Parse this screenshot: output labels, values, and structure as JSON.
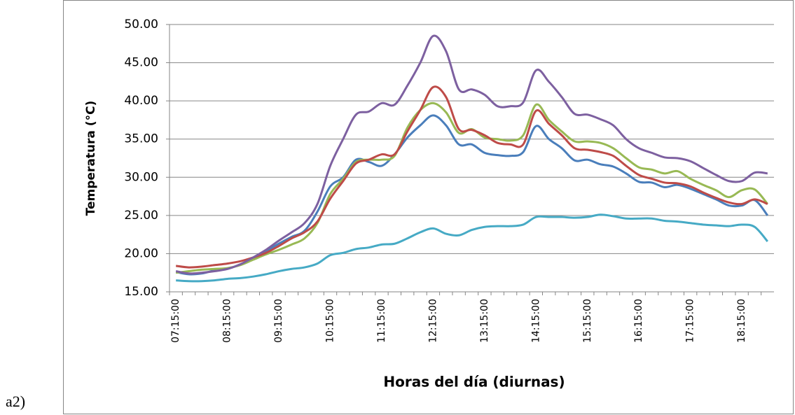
{
  "label": "a2)",
  "chart_data": {
    "type": "line",
    "y_title": "Temperatura (°C)",
    "x_title": "Horas del día (diurnas)",
    "categories": [
      "07:15:00",
      null,
      null,
      null,
      "08:15:00",
      null,
      null,
      null,
      "09:15:00",
      null,
      null,
      null,
      "10:15:00",
      null,
      null,
      null,
      "11:15:00",
      null,
      null,
      null,
      "12:15:00",
      null,
      null,
      null,
      "13:15:00",
      null,
      null,
      null,
      "14:15:00",
      null,
      null,
      null,
      "15:15:00",
      null,
      null,
      null,
      "16:15:00",
      null,
      null,
      null,
      "17:15:00",
      null,
      null,
      null,
      "18:15:00",
      null,
      null
    ],
    "ylim": [
      15,
      50
    ],
    "yticks": [
      {
        "value": 15,
        "label": "15.00"
      },
      {
        "value": 20,
        "label": "20.00"
      },
      {
        "value": 25,
        "label": "25.00"
      },
      {
        "value": 30,
        "label": "30.00"
      },
      {
        "value": 35,
        "label": "35.00"
      },
      {
        "value": 40,
        "label": "40.00"
      },
      {
        "value": 45,
        "label": "45.00"
      },
      {
        "value": 50,
        "label": "50.00"
      }
    ],
    "grid": true,
    "series": [
      {
        "color": "#46aac5",
        "values": [
          16.5,
          16.4,
          16.4,
          16.5,
          16.7,
          16.8,
          17.0,
          17.3,
          17.7,
          18.0,
          18.2,
          18.7,
          19.8,
          20.1,
          20.6,
          20.8,
          21.2,
          21.3,
          22.0,
          22.8,
          23.3,
          22.6,
          22.4,
          23.1,
          23.5,
          23.6,
          23.6,
          23.8,
          24.8,
          24.8,
          24.8,
          24.7,
          24.8,
          25.1,
          24.9,
          24.6,
          24.6,
          24.6,
          24.3,
          24.2,
          24.0,
          23.8,
          23.7,
          23.6,
          23.8,
          23.5,
          21.6
        ]
      },
      {
        "color": "#4a7ebb",
        "values": [
          17.6,
          17.3,
          17.4,
          17.8,
          18.0,
          18.6,
          19.4,
          20.3,
          21.3,
          22.2,
          23.0,
          25.5,
          28.8,
          30.0,
          32.3,
          32.0,
          31.5,
          33.0,
          35.2,
          36.8,
          38.1,
          36.8,
          34.3,
          34.3,
          33.2,
          32.9,
          32.8,
          33.3,
          36.7,
          35.0,
          33.8,
          32.2,
          32.3,
          31.7,
          31.4,
          30.5,
          29.4,
          29.3,
          28.7,
          29.0,
          28.5,
          27.8,
          27.1,
          26.3,
          26.3,
          27.0,
          25.0
        ]
      },
      {
        "color": "#98b954",
        "values": [
          17.5,
          17.7,
          17.9,
          18.0,
          18.1,
          18.5,
          19.2,
          19.9,
          20.5,
          21.2,
          22.0,
          24.0,
          27.8,
          29.8,
          32.0,
          32.3,
          32.3,
          32.8,
          36.5,
          38.8,
          39.7,
          38.5,
          35.8,
          36.3,
          35.2,
          35.0,
          34.8,
          35.5,
          39.5,
          37.5,
          36.0,
          34.7,
          34.7,
          34.5,
          33.8,
          32.5,
          31.3,
          31.0,
          30.5,
          30.8,
          29.8,
          29.0,
          28.3,
          27.4,
          28.3,
          28.4,
          26.5
        ]
      },
      {
        "color": "#be4b48",
        "values": [
          18.4,
          18.2,
          18.3,
          18.5,
          18.7,
          19.0,
          19.5,
          20.1,
          21.0,
          22.0,
          22.8,
          24.2,
          27.2,
          29.5,
          31.8,
          32.3,
          33.0,
          33.0,
          36.0,
          38.8,
          41.8,
          40.5,
          36.3,
          36.2,
          35.5,
          34.5,
          34.3,
          34.3,
          38.7,
          37.0,
          35.5,
          33.8,
          33.6,
          33.3,
          32.8,
          31.5,
          30.3,
          29.8,
          29.3,
          29.2,
          28.8,
          28.0,
          27.3,
          26.7,
          26.5,
          27.1,
          26.5
        ]
      },
      {
        "color": "#7d60a0",
        "values": [
          17.7,
          17.4,
          17.5,
          17.7,
          18.0,
          18.6,
          19.5,
          20.5,
          21.7,
          22.8,
          24.0,
          26.5,
          31.5,
          35.0,
          38.2,
          38.6,
          39.7,
          39.5,
          42.0,
          45.0,
          48.5,
          46.5,
          41.5,
          41.5,
          40.8,
          39.3,
          39.3,
          39.8,
          44.0,
          42.5,
          40.5,
          38.3,
          38.2,
          37.6,
          36.8,
          35.0,
          33.8,
          33.2,
          32.6,
          32.5,
          32.1,
          31.2,
          30.3,
          29.5,
          29.5,
          30.6,
          30.5
        ]
      }
    ]
  }
}
